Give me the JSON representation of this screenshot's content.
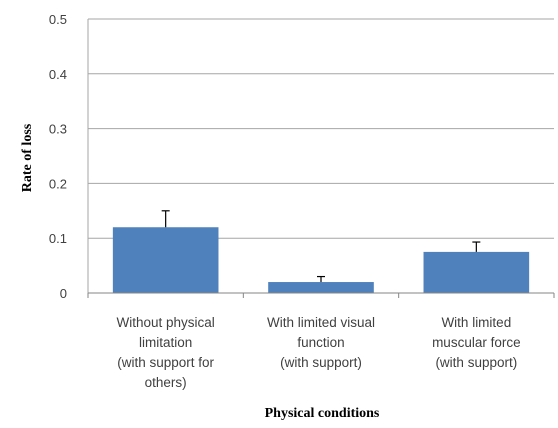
{
  "chart_data": {
    "type": "bar",
    "categories": [
      [
        "Without physical",
        "limitation",
        "(with support for",
        "others)"
      ],
      [
        "With limited visual",
        "function",
        "(with support)"
      ],
      [
        "With limited",
        "muscular force",
        "(with support)"
      ]
    ],
    "values": [
      0.12,
      0.02,
      0.075
    ],
    "error_upper": [
      0.03,
      0.01,
      0.018
    ],
    "ylim": [
      0,
      0.5
    ],
    "yticks": [
      "0",
      "0.1",
      "0.2",
      "0.3",
      "0.4",
      "0.5"
    ],
    "ytick_values": [
      0,
      0.1,
      0.2,
      0.3,
      0.4,
      0.5
    ],
    "xlabel": "Physical conditions",
    "ylabel": "Rate of loss",
    "grid": true,
    "bar_color": "#4f81bd",
    "grid_color": "#a6a6a6"
  }
}
